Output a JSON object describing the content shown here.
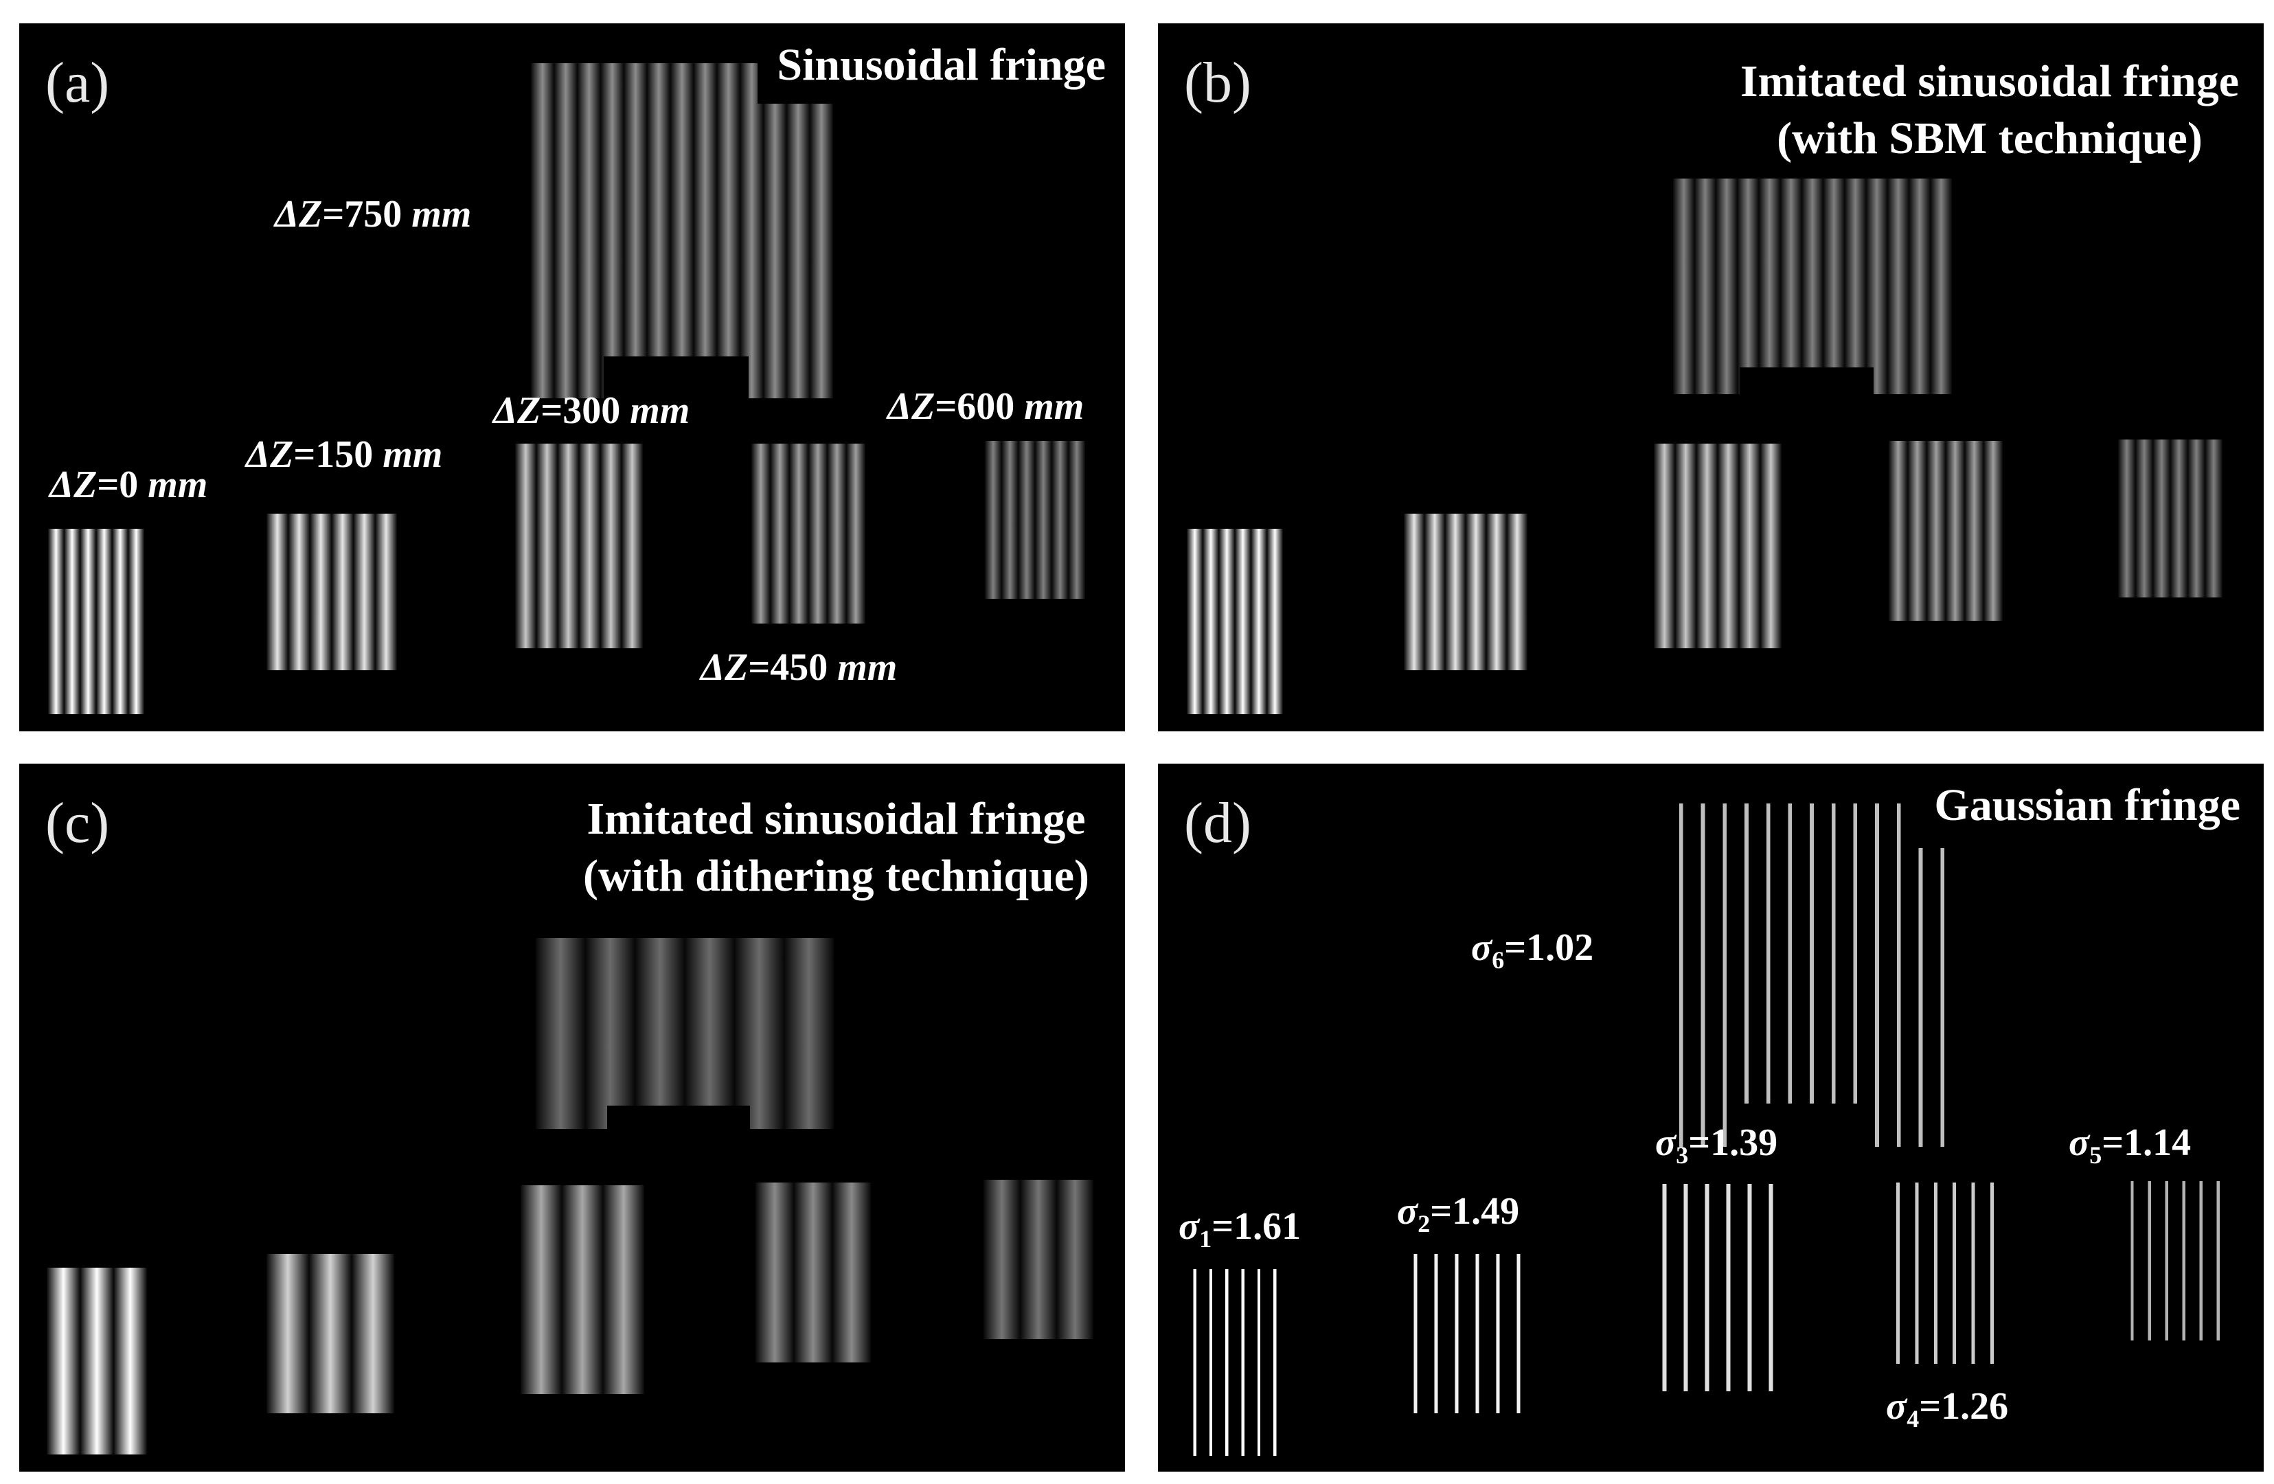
{
  "panels": [
    {
      "letter": "(a)",
      "title_lines": [
        "Sinusoidal fringe"
      ],
      "kind": "sin",
      "labels": [
        {
          "pre": "ΔZ",
          "post": "=750 ",
          "unit": "mm"
        },
        {
          "pre": "ΔZ",
          "post": "=0 ",
          "unit": "mm"
        },
        {
          "pre": "ΔZ",
          "post": "=150 ",
          "unit": "mm"
        },
        {
          "pre": "ΔZ",
          "post": "=300 ",
          "unit": "mm"
        },
        {
          "pre": "ΔZ",
          "post": "=450 ",
          "unit": "mm"
        },
        {
          "pre": "ΔZ",
          "post": "=600 ",
          "unit": "mm"
        }
      ]
    },
    {
      "letter": "(b)",
      "title_lines": [
        "Imitated sinusoidal fringe",
        "(with SBM technique)"
      ],
      "kind": "sin",
      "labels": []
    },
    {
      "letter": "(c)",
      "title_lines": [
        "Imitated sinusoidal fringe",
        "(with dithering technique)"
      ],
      "kind": "dither",
      "labels": []
    },
    {
      "letter": "(d)",
      "title_lines": [
        "Gaussian fringe"
      ],
      "kind": "gauss",
      "labels": [
        {
          "sym": "σ",
          "sub": "6",
          "val": "=1.02"
        },
        {
          "sym": "σ",
          "sub": "1",
          "val": "=1.61"
        },
        {
          "sym": "σ",
          "sub": "2",
          "val": "=1.49"
        },
        {
          "sym": "σ",
          "sub": "3",
          "val": "=1.39"
        },
        {
          "sym": "σ",
          "sub": "4",
          "val": "=1.26"
        },
        {
          "sym": "σ",
          "sub": "5",
          "val": "=1.14"
        }
      ]
    }
  ]
}
